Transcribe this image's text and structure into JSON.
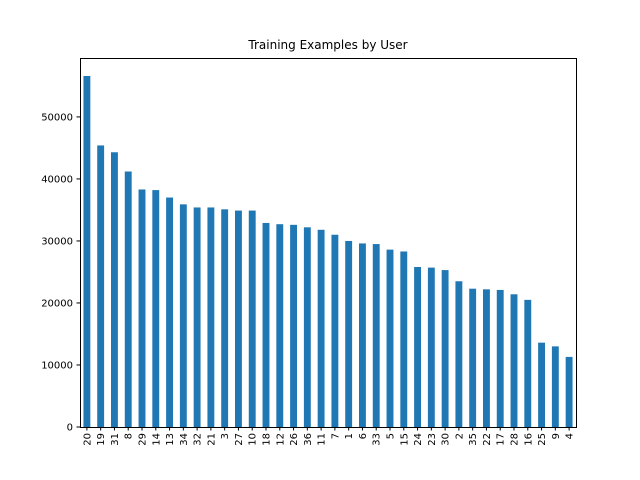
{
  "chart_data": {
    "type": "bar",
    "title": "Training Examples by User",
    "xlabel": "",
    "ylabel": "",
    "categories": [
      "20",
      "19",
      "31",
      "8",
      "29",
      "14",
      "13",
      "34",
      "32",
      "21",
      "3",
      "27",
      "10",
      "18",
      "12",
      "26",
      "36",
      "11",
      "7",
      "1",
      "6",
      "33",
      "5",
      "15",
      "24",
      "23",
      "30",
      "2",
      "35",
      "22",
      "17",
      "28",
      "16",
      "25",
      "9",
      "4"
    ],
    "values": [
      56600,
      45400,
      44300,
      41200,
      38300,
      38200,
      37000,
      35900,
      35400,
      35400,
      35100,
      34900,
      34900,
      32900,
      32700,
      32600,
      32200,
      31800,
      31000,
      30000,
      29600,
      29500,
      28600,
      28300,
      25800,
      25700,
      25300,
      23500,
      22300,
      22200,
      22100,
      21400,
      20500,
      13600,
      13000,
      11300
    ],
    "ylim": [
      0,
      59500
    ],
    "yticks": [
      0,
      10000,
      20000,
      30000,
      40000,
      50000
    ],
    "bar_color": "#1f77b4",
    "grid": false,
    "legend": "none"
  }
}
